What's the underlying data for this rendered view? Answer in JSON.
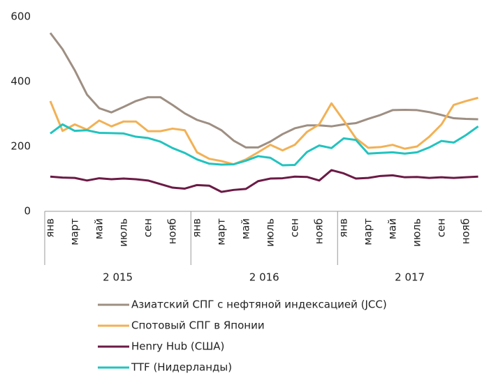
{
  "chart_data": {
    "type": "line",
    "categories": [
      "янв",
      null,
      "март",
      null,
      "май",
      null,
      "июль",
      null,
      "сен",
      null,
      "нояб",
      null,
      "янв",
      null,
      "март",
      null,
      "май",
      null,
      "июль",
      null,
      "сен",
      null,
      "нояб",
      null,
      "янв",
      null,
      "март",
      null,
      "май",
      null,
      "июль",
      null,
      "сен",
      null,
      "нояб",
      null
    ],
    "groups": [
      "2 015",
      "2 016",
      "2 017"
    ],
    "ylim": [
      0,
      600
    ],
    "yticks": [
      0,
      200,
      400,
      600
    ],
    "series": [
      {
        "name": "Азиатский СПГ с нефтяной индексацией (JCC)",
        "color": "#9e8f83",
        "values": [
          550,
          500,
          435,
          360,
          318,
          305,
          322,
          340,
          352,
          352,
          328,
          302,
          282,
          270,
          250,
          218,
          197,
          197,
          215,
          238,
          256,
          265,
          265,
          262,
          268,
          272,
          285,
          297,
          312,
          313,
          312,
          306,
          297,
          287,
          285,
          284
        ]
      },
      {
        "name": "Спотовый СПГ в Японии",
        "color": "#f2b155",
        "values": [
          340,
          248,
          268,
          252,
          280,
          262,
          277,
          277,
          247,
          247,
          255,
          250,
          182,
          162,
          155,
          145,
          160,
          182,
          205,
          188,
          205,
          245,
          268,
          333,
          280,
          225,
          196,
          198,
          205,
          193,
          200,
          230,
          268,
          328,
          340,
          350
        ]
      },
      {
        "name": "Henry Hub (США)",
        "color": "#6b1a45",
        "values": [
          107,
          104,
          103,
          95,
          102,
          99,
          101,
          99,
          95,
          84,
          73,
          70,
          81,
          79,
          60,
          66,
          69,
          93,
          101,
          102,
          107,
          106,
          95,
          127,
          117,
          101,
          103,
          109,
          111,
          105,
          106,
          103,
          105,
          103,
          105,
          107
        ]
      },
      {
        "name": "TTF (Нидерланды)",
        "color": "#22c3bf",
        "values": [
          240,
          268,
          248,
          250,
          242,
          241,
          240,
          230,
          226,
          215,
          195,
          180,
          160,
          147,
          144,
          145,
          156,
          170,
          165,
          142,
          143,
          183,
          203,
          195,
          225,
          220,
          178,
          180,
          182,
          178,
          182,
          197,
          217,
          212,
          235,
          262
        ]
      }
    ]
  }
}
